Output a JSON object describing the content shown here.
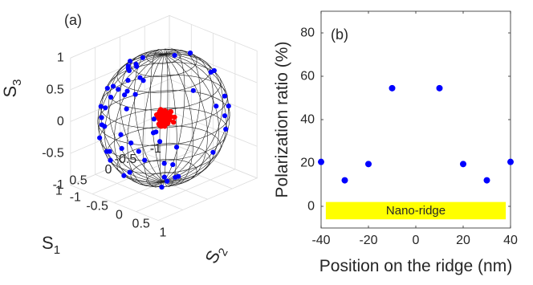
{
  "chart_data": [
    {
      "type": "scatter",
      "panel_label": "(a)",
      "projection": "3d-sphere",
      "title": "",
      "axes": {
        "x": {
          "label": "S",
          "subscript": "1",
          "range": [
            -1,
            1
          ],
          "ticks": [
            "-1",
            "-0.5",
            "0",
            "0.5",
            "1"
          ]
        },
        "y": {
          "label": "S",
          "subscript": "2",
          "range": [
            -1,
            1
          ],
          "ticks": [
            "-1",
            "-0.5",
            "0",
            "0.5",
            "1"
          ]
        },
        "z": {
          "label": "S",
          "subscript": "3",
          "range": [
            -1,
            1
          ],
          "ticks": [
            "-1",
            "-0.5",
            "0",
            "0.5",
            "1"
          ]
        }
      },
      "grid": true,
      "series": [
        {
          "color": "#0000ff",
          "marker": "circle",
          "description_points": "distributed across the Poincaré sphere surface"
        },
        {
          "color": "#ff0000",
          "marker": "circle",
          "description_points": "clustered near the sphere center"
        }
      ]
    },
    {
      "type": "scatter",
      "panel_label": "(b)",
      "title": "",
      "xlabel": "Position on the ridge (nm)",
      "ylabel": "Polarization ratio (%)",
      "xlim": [
        -40,
        40
      ],
      "ylim": [
        -10,
        90
      ],
      "xticks": [
        -40,
        -20,
        0,
        20,
        40
      ],
      "yticks": [
        0,
        20,
        40,
        60,
        80
      ],
      "grid": false,
      "series": [
        {
          "color": "#0000ff",
          "points": [
            {
              "x": -40,
              "y": 20.5
            },
            {
              "x": -30,
              "y": 12
            },
            {
              "x": -20,
              "y": 19.5
            },
            {
              "x": -10,
              "y": 54.5
            },
            {
              "x": 10,
              "y": 54.5
            },
            {
              "x": 20,
              "y": 19.5
            },
            {
              "x": 30,
              "y": 12
            },
            {
              "x": 40,
              "y": 20.5
            }
          ]
        }
      ],
      "annotation": {
        "text": "Nano-ridge",
        "color": "#ffff00",
        "x_range": [
          -38,
          38
        ],
        "y_range": [
          -6,
          2
        ]
      }
    }
  ]
}
